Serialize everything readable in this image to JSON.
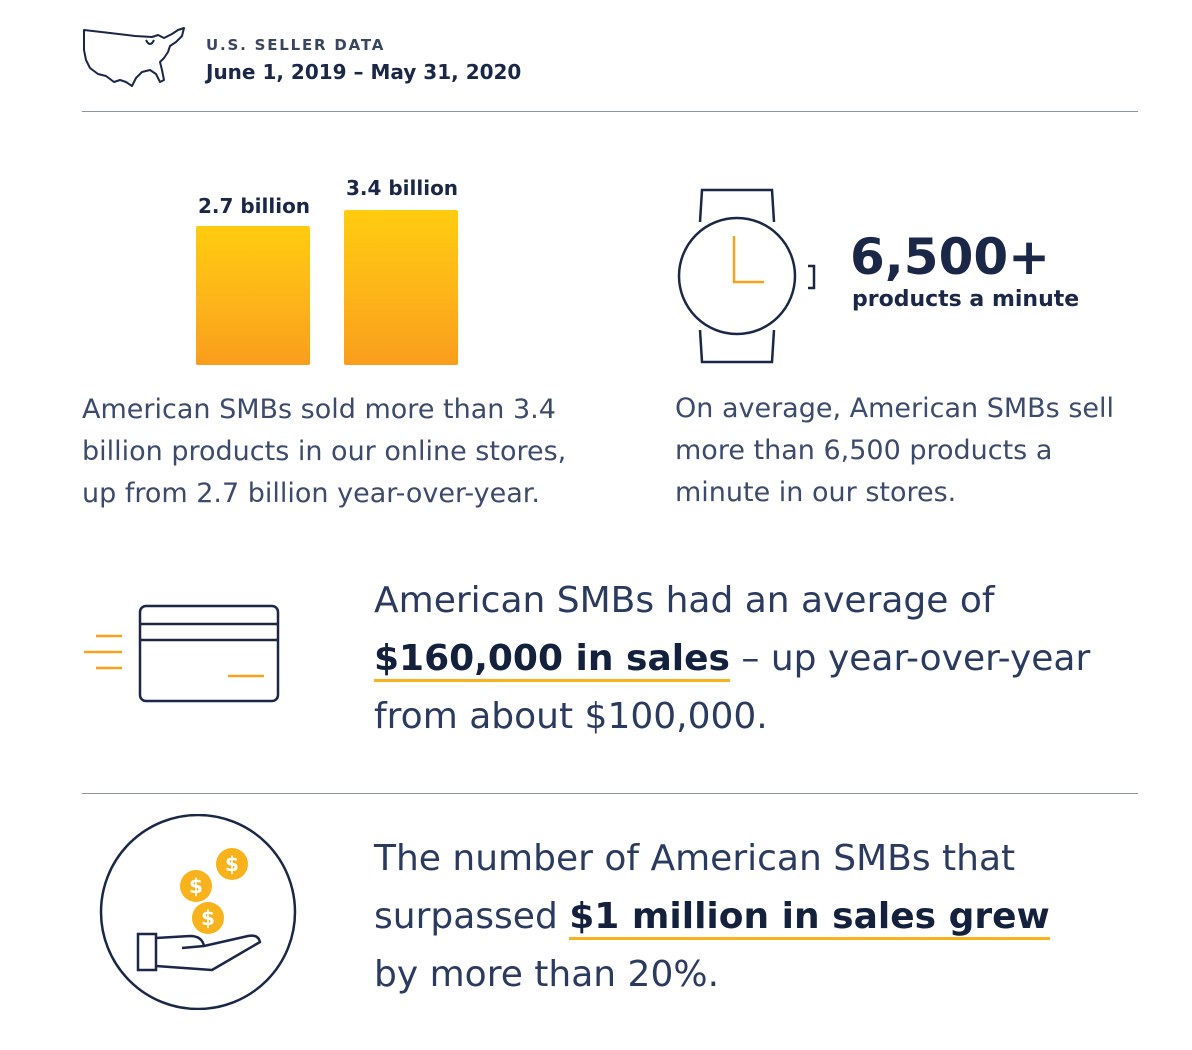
{
  "header": {
    "kicker": "U.S. SELLER DATA",
    "date_range": "June 1, 2019 – May 31, 2020"
  },
  "stat_products": {
    "bars": [
      {
        "label": "2.7 billion",
        "value": 2.7
      },
      {
        "label": "3.4 billion",
        "value": 3.4
      }
    ],
    "description": [
      "American SMBs sold more than 3.4",
      "billion products in our online stores,",
      "up from 2.7 billion year-over-year."
    ]
  },
  "stat_rate": {
    "number": "6,500+",
    "unit": "products a minute",
    "description": [
      "On average, American SMBs sell",
      "more than 6,500 products a",
      "minute in our stores."
    ]
  },
  "stat_sales": {
    "line1": "American SMBs had an average of",
    "highlight": "$160,000 in sales",
    "line2_rest": " – up year-over-year",
    "line3": "from about $100,000."
  },
  "stat_million": {
    "line1": "The number of American SMBs that",
    "line2_pre": "surpassed ",
    "highlight": "$1 million in sales grew",
    "line3": "by more than 20%."
  },
  "colors": {
    "navy": "#1b2747",
    "accent": "#f8b21b",
    "rule": "#8c93a3"
  },
  "icons": {
    "header": "us-map-icon",
    "rate": "watch-icon",
    "sales": "credit-card-icon",
    "million": "coins-hand-icon"
  }
}
